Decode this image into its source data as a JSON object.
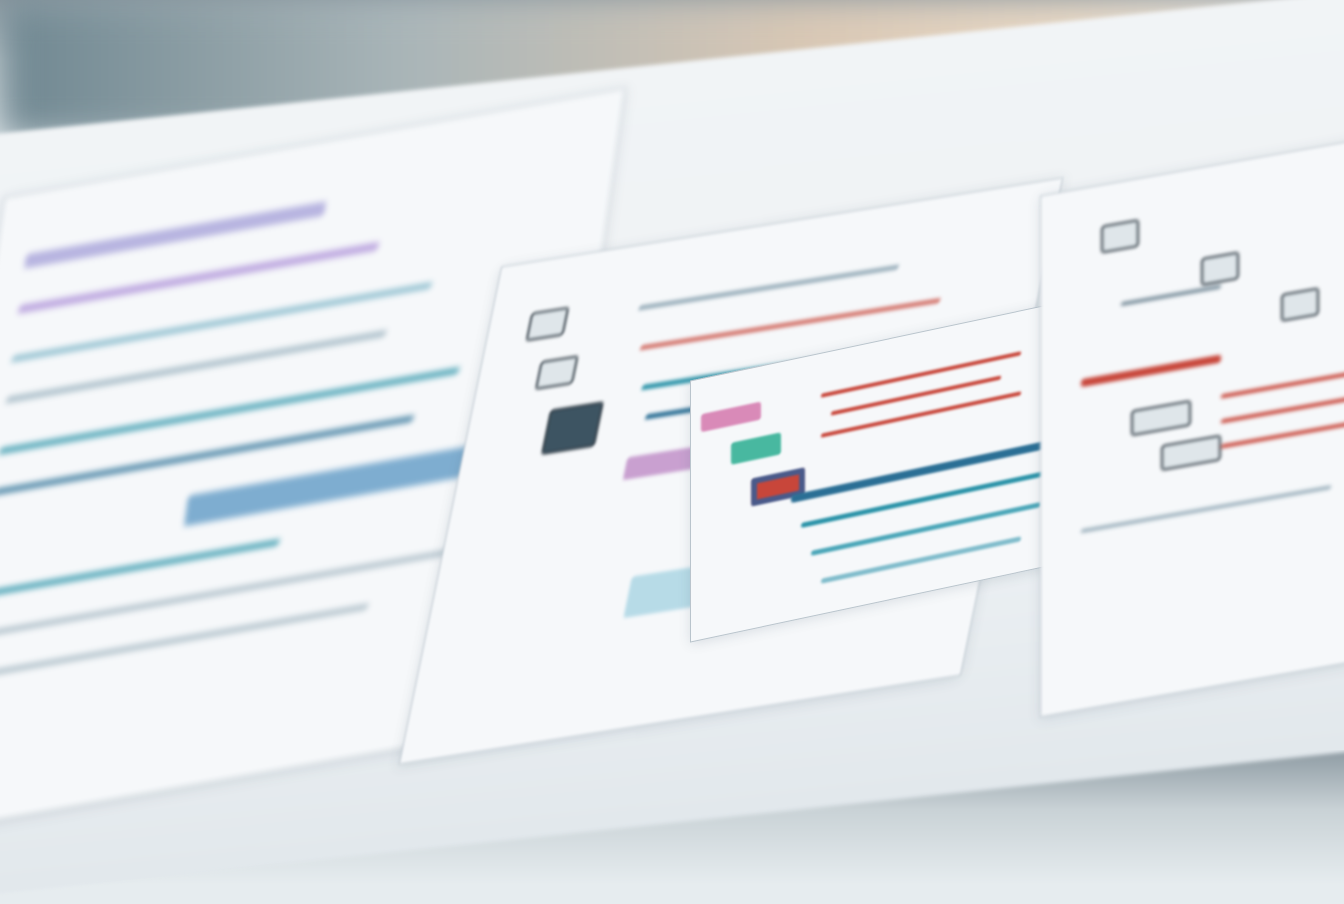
{
  "palette": {
    "teal": "#2a93a8",
    "blue": "#2a6f95",
    "red": "#c8463a",
    "pink": "#d98ab8",
    "lavender": "#a99ad8",
    "dark": "#2f3b44",
    "paper": "#f6f8fa"
  }
}
